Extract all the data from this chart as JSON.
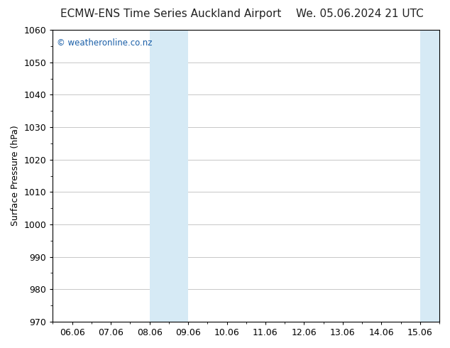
{
  "title_left": "ECMW-ENS Time Series Auckland Airport",
  "title_right": "We. 05.06.2024 21 UTC",
  "ylabel": "Surface Pressure (hPa)",
  "ylim": [
    970,
    1060
  ],
  "yticks": [
    970,
    980,
    990,
    1000,
    1010,
    1020,
    1030,
    1040,
    1050,
    1060
  ],
  "xtick_labels": [
    "06.06",
    "07.06",
    "08.06",
    "09.06",
    "10.06",
    "11.06",
    "12.06",
    "13.06",
    "14.06",
    "15.06"
  ],
  "watermark_text": "© weatheronline.co.nz",
  "watermark_color": "#1a5fa8",
  "background_color": "#ffffff",
  "plot_bg_color": "#ffffff",
  "grid_color": "#b0b0b0",
  "title_fontsize": 11,
  "axis_label_fontsize": 9,
  "tick_fontsize": 9,
  "shade_color": "#d6eaf5",
  "shade_alpha": 1.0,
  "band1a_xstart": 2.0,
  "band1a_xend": 2.5,
  "band1b_xstart": 2.5,
  "band1b_xend": 3.0,
  "band2a_xstart": 9.0,
  "band2a_xend": 9.5,
  "band2b_xstart": 9.5,
  "band2b_xend": 10.0
}
